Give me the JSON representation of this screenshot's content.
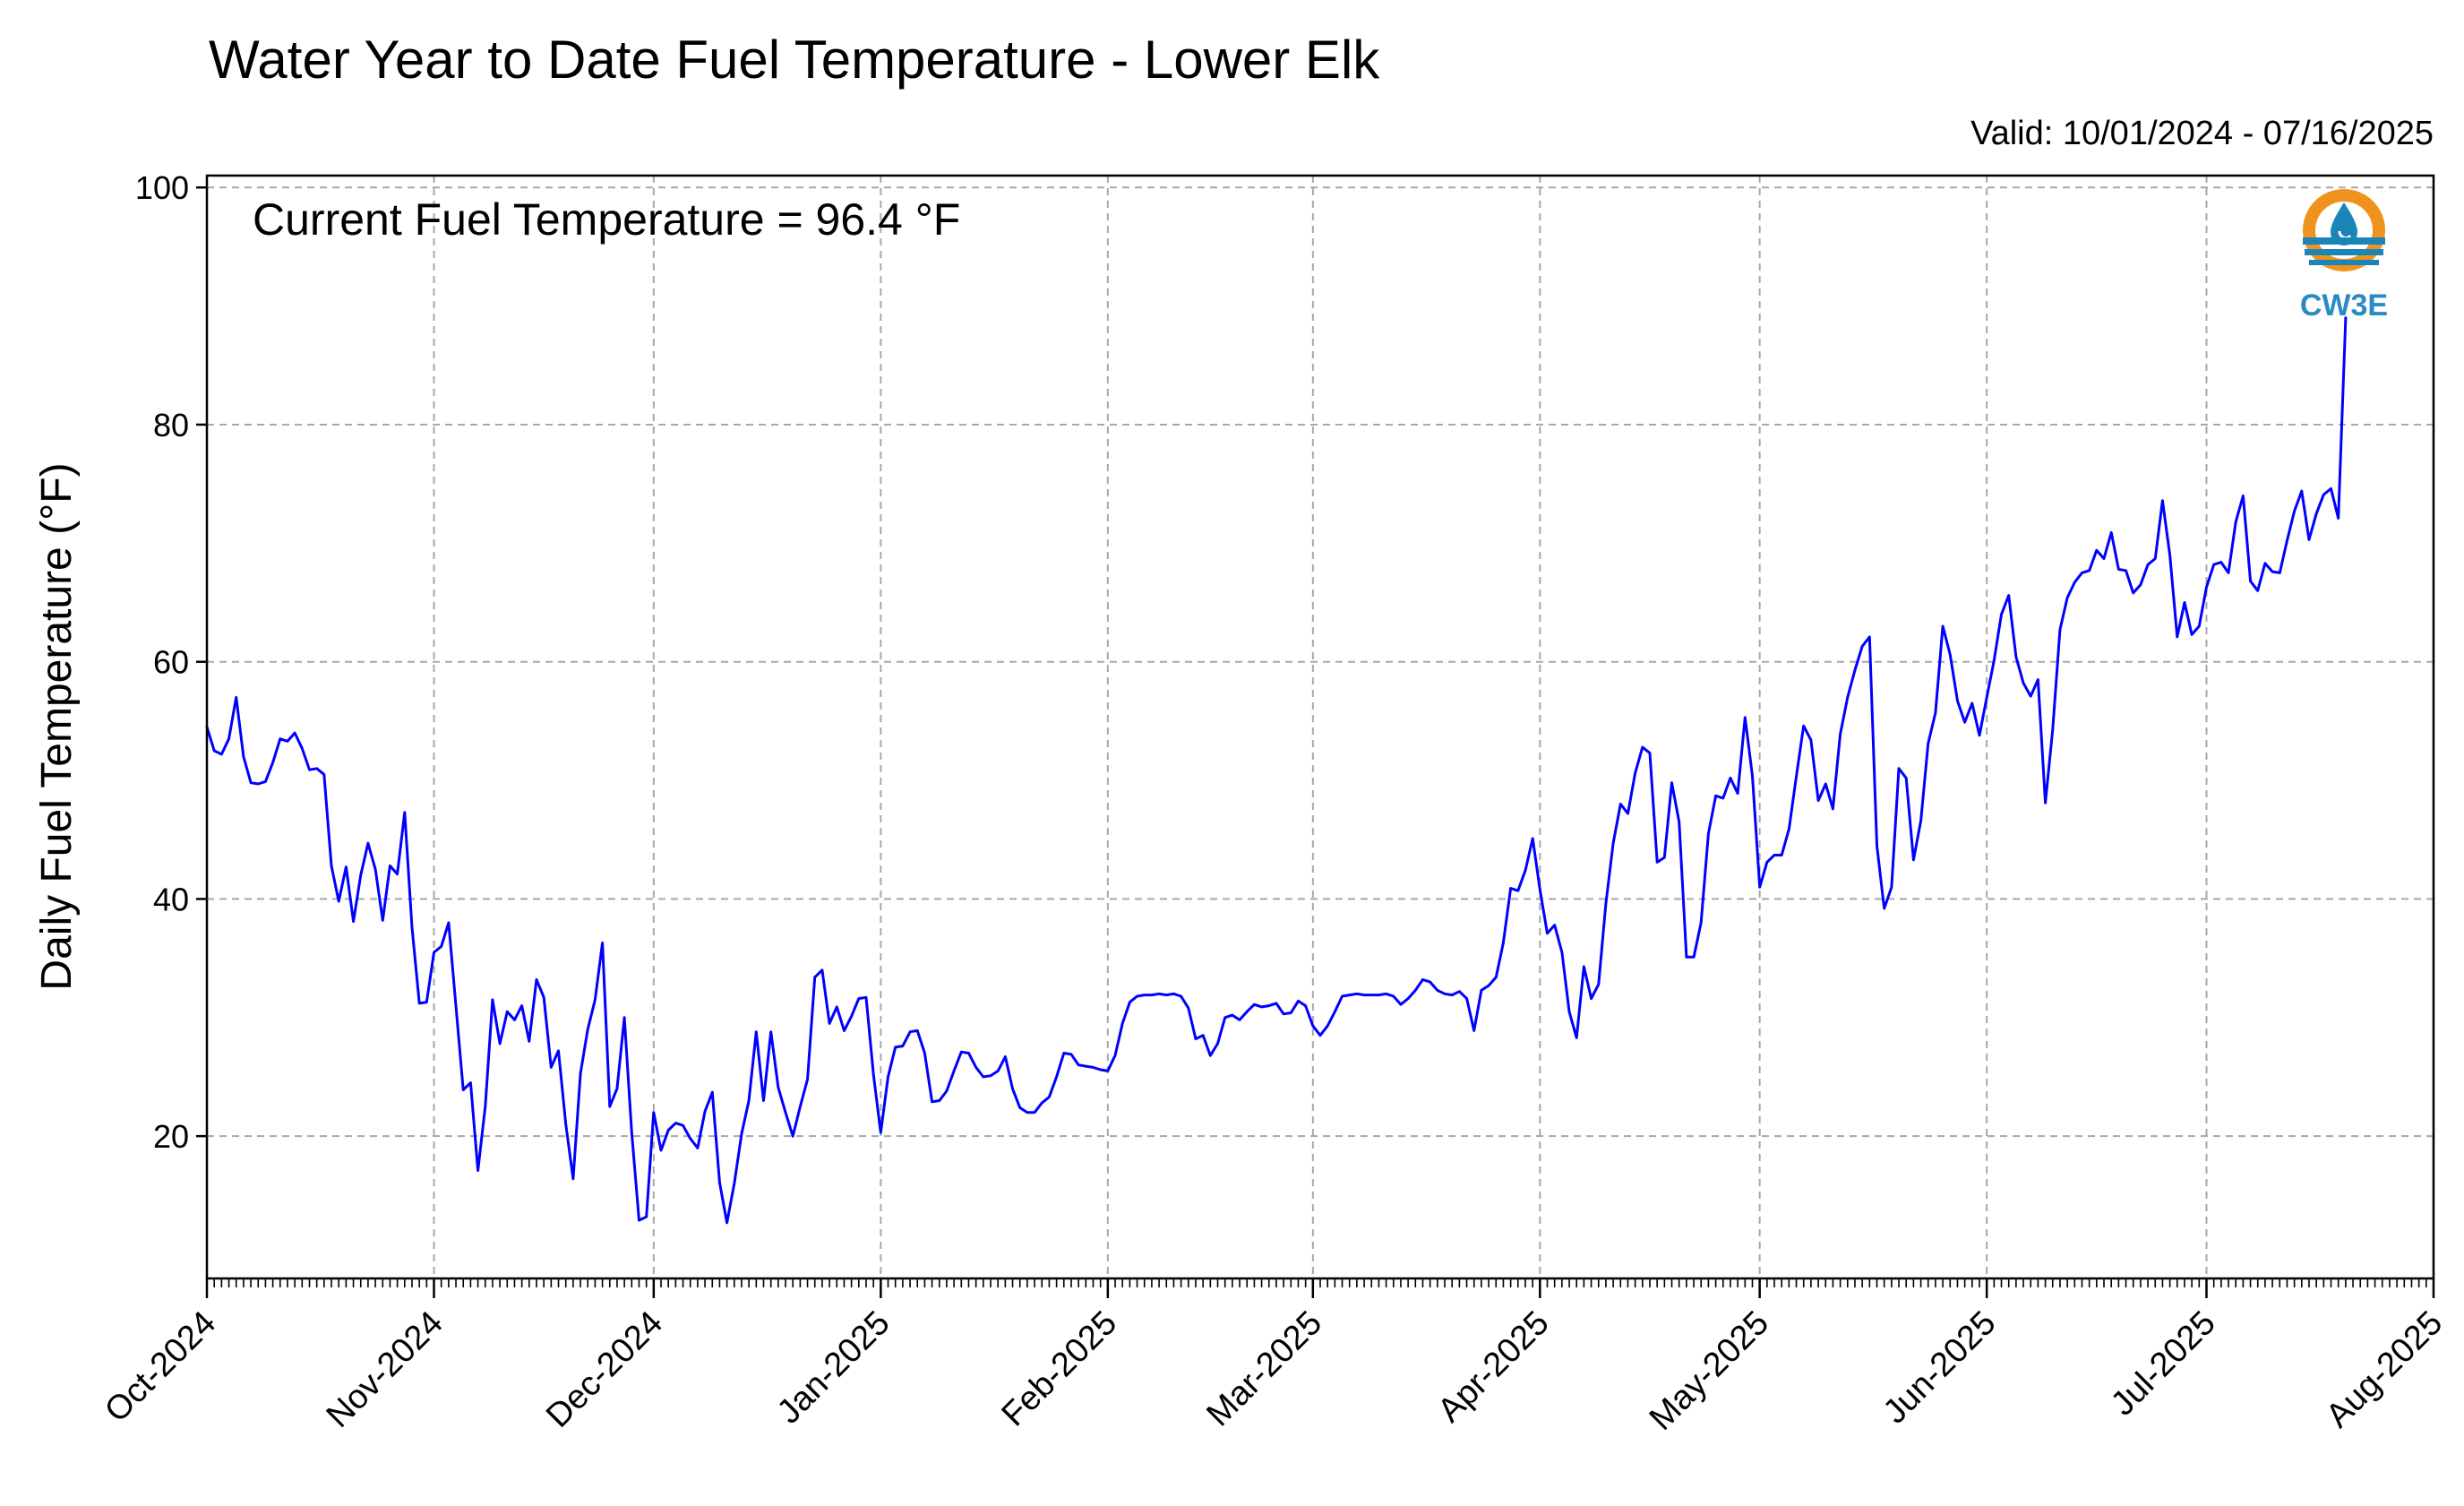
{
  "chart_data": {
    "type": "line",
    "title": "Water Year to Date Fuel Temperature - Lower Elk",
    "subtitle": "Valid: 10/01/2024 - 07/16/2025",
    "annotation": "Current Fuel Temperature = 96.4 °F",
    "xlabel": "",
    "ylabel": "Daily Fuel Temperature (°F)",
    "xlim": [
      "2024-10-01",
      "2025-08-01"
    ],
    "ylim": [
      8,
      101
    ],
    "yticks": [
      20,
      40,
      60,
      80,
      100
    ],
    "xticks": [
      "Oct-2024",
      "Nov-2024",
      "Dec-2024",
      "Jan-2025",
      "Feb-2025",
      "Mar-2025",
      "Apr-2025",
      "May-2025",
      "Jun-2025",
      "Jul-2025",
      "Aug-2025"
    ],
    "grid": true,
    "start_date": "2024-10-01",
    "series": [
      {
        "name": "",
        "color": "#0000ff",
        "values": [
          54.5,
          52.5,
          52.2,
          53.5,
          57.0,
          52.0,
          49.8,
          49.7,
          49.9,
          51.5,
          53.5,
          53.3,
          54.0,
          52.7,
          50.9,
          51.0,
          50.5,
          42.8,
          39.8,
          42.7,
          38.1,
          42.0,
          44.7,
          42.5,
          38.2,
          42.8,
          42.1,
          47.3,
          37.6,
          31.2,
          31.3,
          35.5,
          36.0,
          38.0,
          31.0,
          23.9,
          24.5,
          17.1,
          22.5,
          31.5,
          27.8,
          30.5,
          29.8,
          31.0,
          28.0,
          33.2,
          31.7,
          25.8,
          27.2,
          21.0,
          16.4,
          25.3,
          29.0,
          31.5,
          36.3,
          22.5,
          24.0,
          30.0,
          20.3,
          12.9,
          13.2,
          22.0,
          18.8,
          20.5,
          21.1,
          20.9,
          19.8,
          19.0,
          22.1,
          23.7,
          16.1,
          12.7,
          16.0,
          20.2,
          23.0,
          28.8,
          23.0,
          28.8,
          24.1,
          22.0,
          20.0,
          22.5,
          24.8,
          33.4,
          34.0,
          29.5,
          30.9,
          28.9,
          30.1,
          31.6,
          31.7,
          25.2,
          20.3,
          25.0,
          27.5,
          27.6,
          28.8,
          28.9,
          27.0,
          22.9,
          23.0,
          23.8,
          25.5,
          27.1,
          27.0,
          25.8,
          25.0,
          25.1,
          25.5,
          26.7,
          24.0,
          22.4,
          22.0,
          22.0,
          22.8,
          23.3,
          25.0,
          27.0,
          26.9,
          26.0,
          25.9,
          25.8,
          25.6,
          25.5,
          26.8,
          29.5,
          31.3,
          31.8,
          31.9,
          31.9,
          32.0,
          31.9,
          32.0,
          31.8,
          30.8,
          28.2,
          28.5,
          26.8,
          27.8,
          30.0,
          30.2,
          29.8,
          30.5,
          31.1,
          30.9,
          31.0,
          31.2,
          30.3,
          30.4,
          31.4,
          31.0,
          29.3,
          28.5,
          29.3,
          30.5,
          31.8,
          31.9,
          32.0,
          31.9,
          31.9,
          31.9,
          32.0,
          31.8,
          31.1,
          31.6,
          32.3,
          33.2,
          33.0,
          32.3,
          32.0,
          31.9,
          32.2,
          31.6,
          28.9,
          32.3,
          32.7,
          33.4,
          36.3,
          40.9,
          40.7,
          42.4,
          45.1,
          40.8,
          37.1,
          37.8,
          35.5,
          30.5,
          28.3,
          34.3,
          31.6,
          32.8,
          39.6,
          44.7,
          48.0,
          47.2,
          50.6,
          52.8,
          52.3,
          43.1,
          43.5,
          49.8,
          46.5,
          35.1,
          35.1,
          38.0,
          45.5,
          48.7,
          48.5,
          50.2,
          48.9,
          55.3,
          50.4,
          41.0,
          43.1,
          43.7,
          43.7,
          45.9,
          50.3,
          54.6,
          53.4,
          48.3,
          49.7,
          47.6,
          53.9,
          57.0,
          59.3,
          61.3,
          62.1,
          44.5,
          39.2,
          41.0,
          51.0,
          50.2,
          43.3,
          46.6,
          53.1,
          55.7,
          63.0,
          60.6,
          56.7,
          54.9,
          56.5,
          53.8,
          57.0,
          60.1,
          64.0,
          65.6,
          60.4,
          58.2,
          57.1,
          58.5,
          48.1,
          54.3,
          62.7,
          65.4,
          66.7,
          67.5,
          67.7,
          69.4,
          68.7,
          70.9,
          67.8,
          67.7,
          65.8,
          66.5,
          68.2,
          68.7,
          73.6,
          69.0,
          62.1,
          65.0,
          62.3,
          63.0,
          66.3,
          68.2,
          68.4,
          67.5,
          71.8,
          74.0,
          66.8,
          66.0,
          68.3,
          67.6,
          67.5,
          70.2,
          72.7,
          74.4,
          70.3,
          72.5,
          74.1,
          74.6,
          72.1,
          89.0
        ]
      }
    ]
  },
  "logo": {
    "text": "CW3E",
    "ring_color": "#f0931e",
    "water_color": "#1b85b8",
    "text_color": "#2a8bc4"
  }
}
